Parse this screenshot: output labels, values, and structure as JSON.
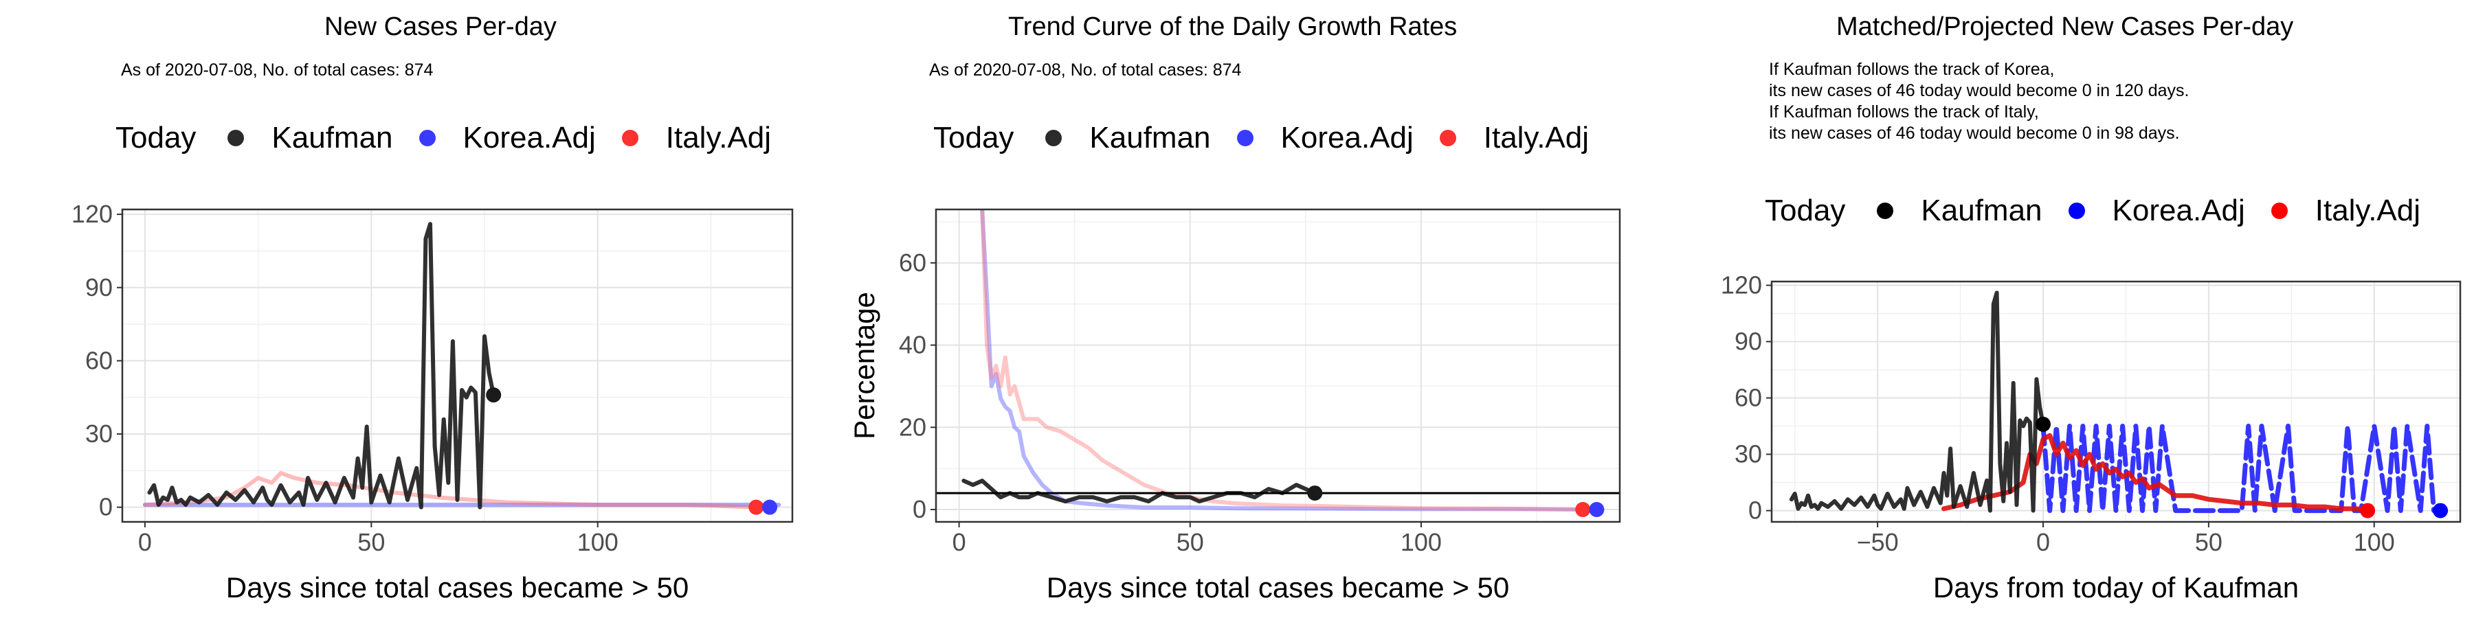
{
  "chart_data": [
    {
      "type": "line",
      "title": "New Cases Per-day",
      "subtitle": "As of 2020-07-08, No. of total cases: 874",
      "legend_title": "Today",
      "legend": [
        "Kaufman",
        "Korea.Adj",
        "Italy.Adj"
      ],
      "legend_placement": "top",
      "xlabel": "Days since total cases became > 50",
      "ylabel": "",
      "xlim": [
        -5,
        143
      ],
      "ylim": [
        -6,
        122
      ],
      "xticks": [
        0,
        50,
        100
      ],
      "yticks": [
        0,
        30,
        60,
        90,
        120
      ],
      "grid": true,
      "series": [
        {
          "name": "Kaufman",
          "color": "#1a1a1a",
          "opacity": 0.9,
          "x": [
            1,
            2,
            3,
            4,
            5,
            6,
            7,
            8,
            9,
            10,
            12,
            14,
            16,
            18,
            20,
            22,
            24,
            26,
            27,
            28,
            30,
            32,
            34,
            35,
            36,
            38,
            40,
            42,
            44,
            46,
            47,
            48,
            49,
            50,
            52,
            54,
            56,
            58,
            60,
            61,
            62,
            63,
            64,
            65,
            66,
            67,
            68,
            69,
            70,
            71,
            72,
            73,
            74,
            75,
            76,
            77
          ],
          "y": [
            6,
            9,
            1,
            4,
            3,
            8,
            2,
            3,
            1,
            4,
            2,
            5,
            1,
            6,
            3,
            7,
            2,
            8,
            3,
            1,
            9,
            2,
            6,
            1,
            12,
            3,
            10,
            2,
            12,
            4,
            20,
            8,
            33,
            2,
            13,
            2,
            20,
            3,
            16,
            0,
            110,
            116,
            25,
            5,
            36,
            10,
            68,
            3,
            48,
            45,
            49,
            47,
            0,
            70,
            55,
            46
          ]
        },
        {
          "name": "Korea.Adj",
          "color": "#3a3aff",
          "opacity": 0.45,
          "x": [
            0,
            10,
            20,
            40,
            60,
            80,
            100,
            120,
            140
          ],
          "y": [
            1,
            1,
            1,
            1,
            1,
            1,
            1,
            1,
            1
          ]
        },
        {
          "name": "Italy.Adj",
          "color": "#ff6b6b",
          "opacity": 0.45,
          "x": [
            0,
            10,
            18,
            22,
            25,
            28,
            30,
            33,
            38,
            45,
            55,
            65,
            80,
            100,
            120,
            135
          ],
          "y": [
            1,
            2,
            4,
            8,
            12,
            10,
            14,
            12,
            10,
            9,
            6,
            4,
            2,
            1,
            1,
            0
          ]
        }
      ],
      "today_points": [
        {
          "name": "Kaufman",
          "x": 77,
          "y": 46
        },
        {
          "name": "Italy.Adj",
          "x": 135,
          "y": 0
        },
        {
          "name": "Korea.Adj",
          "x": 138,
          "y": 0
        }
      ]
    },
    {
      "type": "line",
      "title": "Trend Curve of the Daily Growth Rates",
      "subtitle": "As of 2020-07-08, No. of total cases: 874",
      "legend_title": "Today",
      "legend": [
        "Kaufman",
        "Korea.Adj",
        "Italy.Adj"
      ],
      "legend_placement": "top",
      "xlabel": "Days since total cases became > 50",
      "ylabel": "Percentage",
      "xlim": [
        -5,
        143
      ],
      "ylim": [
        -3,
        73
      ],
      "xticks": [
        0,
        50,
        100
      ],
      "yticks": [
        0,
        20,
        40,
        60
      ],
      "grid": true,
      "hline": 4,
      "series": [
        {
          "name": "Kaufman",
          "color": "#1a1a1a",
          "opacity": 0.9,
          "x": [
            1,
            3,
            5,
            7,
            9,
            11,
            13,
            15,
            17,
            20,
            23,
            26,
            29,
            32,
            35,
            38,
            41,
            44,
            47,
            50,
            52,
            55,
            58,
            61,
            64,
            67,
            70,
            73,
            77
          ],
          "y": [
            7,
            6,
            7,
            5,
            3,
            4,
            3,
            3,
            4,
            3,
            2,
            3,
            3,
            2,
            3,
            3,
            2,
            4,
            3,
            3,
            2,
            3,
            4,
            4,
            3,
            5,
            4,
            6,
            4
          ]
        },
        {
          "name": "Korea.Adj",
          "color": "#6a6aff",
          "opacity": 0.5,
          "x": [
            5,
            6,
            7,
            8,
            9,
            10,
            11,
            12,
            13,
            14,
            16,
            18,
            20,
            23,
            27,
            32,
            40,
            50,
            60,
            80,
            100,
            120,
            138
          ],
          "y": [
            73,
            52,
            30,
            33,
            27,
            25,
            24,
            20,
            19,
            13,
            9,
            6,
            4,
            2,
            1.5,
            1,
            0.5,
            0.5,
            0.3,
            0.2,
            0.1,
            0.1,
            0
          ]
        },
        {
          "name": "Italy.Adj",
          "color": "#ff8080",
          "opacity": 0.45,
          "x": [
            5,
            6,
            7,
            8,
            9,
            10,
            11,
            12,
            13,
            14,
            15,
            17,
            19,
            22,
            25,
            28,
            31,
            34,
            37,
            40,
            45,
            50,
            55,
            60,
            70,
            80,
            100,
            120,
            135
          ],
          "y": [
            73,
            40,
            32,
            35,
            30,
            37,
            28,
            30,
            26,
            22,
            22,
            22,
            20,
            19,
            17,
            15,
            12,
            10,
            8,
            6,
            4,
            3,
            2,
            1.5,
            1,
            0.8,
            0.3,
            0.2,
            0
          ]
        }
      ],
      "today_points": [
        {
          "name": "Kaufman",
          "x": 77,
          "y": 4
        },
        {
          "name": "Italy.Adj",
          "x": 135,
          "y": 0
        },
        {
          "name": "Korea.Adj",
          "x": 138,
          "y": 0
        }
      ]
    },
    {
      "type": "line",
      "title": "Matched/Projected New Cases Per-day",
      "annotation": [
        "If Kaufman follows the track of Korea,",
        "its new cases of 46 today would become 0 in 120 days.",
        "If Kaufman follows the track of Italy,",
        "its new cases of 46 today would become 0 in 98 days."
      ],
      "legend_title": "Today",
      "legend": [
        "Kaufman",
        "Korea.Adj",
        "Italy.Adj"
      ],
      "legend_placement": "top",
      "xlabel": "Days from today of Kaufman",
      "ylabel": "",
      "xlim": [
        -82,
        126
      ],
      "ylim": [
        -6,
        122
      ],
      "xticks": [
        -50,
        0,
        50,
        100
      ],
      "yticks": [
        0,
        30,
        60,
        90,
        120
      ],
      "grid": true,
      "series": [
        {
          "name": "Kaufman",
          "color": "#1a1a1a",
          "opacity": 0.9,
          "x": [
            -76,
            -75,
            -74,
            -73,
            -72,
            -71,
            -70,
            -69,
            -68,
            -67,
            -65,
            -63,
            -61,
            -59,
            -57,
            -55,
            -53,
            -51,
            -50,
            -49,
            -47,
            -45,
            -43,
            -42,
            -41,
            -39,
            -37,
            -35,
            -33,
            -31,
            -30,
            -29,
            -28,
            -27,
            -25,
            -23,
            -21,
            -19,
            -17,
            -16,
            -15,
            -14,
            -13,
            -12,
            -11,
            -10,
            -9,
            -8,
            -7,
            -6,
            -5,
            -4,
            -3,
            -2,
            -1,
            0
          ],
          "y": [
            6,
            9,
            1,
            4,
            3,
            8,
            2,
            3,
            1,
            4,
            2,
            5,
            1,
            6,
            3,
            7,
            2,
            8,
            3,
            1,
            9,
            2,
            6,
            1,
            12,
            3,
            10,
            2,
            12,
            4,
            20,
            8,
            33,
            2,
            13,
            2,
            20,
            3,
            16,
            0,
            110,
            116,
            25,
            5,
            36,
            10,
            68,
            3,
            48,
            45,
            49,
            47,
            0,
            70,
            55,
            46
          ]
        },
        {
          "name": "Korea.Adj",
          "color": "#2a2aff",
          "opacity": 0.95,
          "dashed_segment": true,
          "x": [
            0,
            2,
            4,
            6,
            8,
            10,
            12,
            14,
            16,
            18,
            20,
            22,
            24,
            26,
            28,
            30,
            32,
            34,
            36,
            40,
            50,
            60,
            62,
            64,
            66,
            70,
            74,
            76,
            78,
            80,
            90,
            92,
            94,
            96,
            100,
            104,
            106,
            108,
            110,
            114,
            116,
            118,
            120
          ],
          "y": [
            45,
            0,
            45,
            0,
            45,
            0,
            45,
            0,
            45,
            0,
            45,
            0,
            45,
            0,
            45,
            0,
            45,
            0,
            45,
            0,
            0,
            0,
            45,
            0,
            45,
            0,
            45,
            0,
            0,
            0,
            0,
            45,
            0,
            0,
            45,
            0,
            45,
            0,
            45,
            0,
            45,
            0,
            0
          ]
        },
        {
          "name": "Italy.Adj",
          "color": "#e01010",
          "opacity": 0.9,
          "x": [
            -30,
            -25,
            -20,
            -15,
            -10,
            -6,
            -4,
            -2,
            0,
            2,
            4,
            6,
            8,
            10,
            12,
            14,
            16,
            18,
            20,
            22,
            24,
            26,
            28,
            30,
            32,
            35,
            40,
            45,
            50,
            55,
            60,
            65,
            70,
            75,
            80,
            85,
            90,
            95,
            98
          ],
          "y": [
            1,
            3,
            6,
            8,
            10,
            15,
            30,
            25,
            38,
            40,
            30,
            36,
            28,
            32,
            24,
            30,
            22,
            25,
            20,
            22,
            18,
            20,
            15,
            17,
            12,
            14,
            8,
            8,
            6,
            5,
            4,
            4,
            3,
            3,
            2,
            2,
            1,
            1,
            0
          ]
        }
      ],
      "today_points": [
        {
          "name": "Kaufman",
          "x": 0,
          "y": 46
        },
        {
          "name": "Italy.Adj",
          "x": 98,
          "y": 0
        },
        {
          "name": "Korea.Adj",
          "x": 120,
          "y": 0
        }
      ]
    }
  ],
  "legend_colors": {
    "Kaufman": "#2b2b2b",
    "Korea.Adj": "#3a3aff",
    "Italy.Adj": "#ff3030"
  },
  "legend_colors_panel3": {
    "Kaufman": "#000000",
    "Korea.Adj": "#0000ff",
    "Italy.Adj": "#ff0000"
  }
}
